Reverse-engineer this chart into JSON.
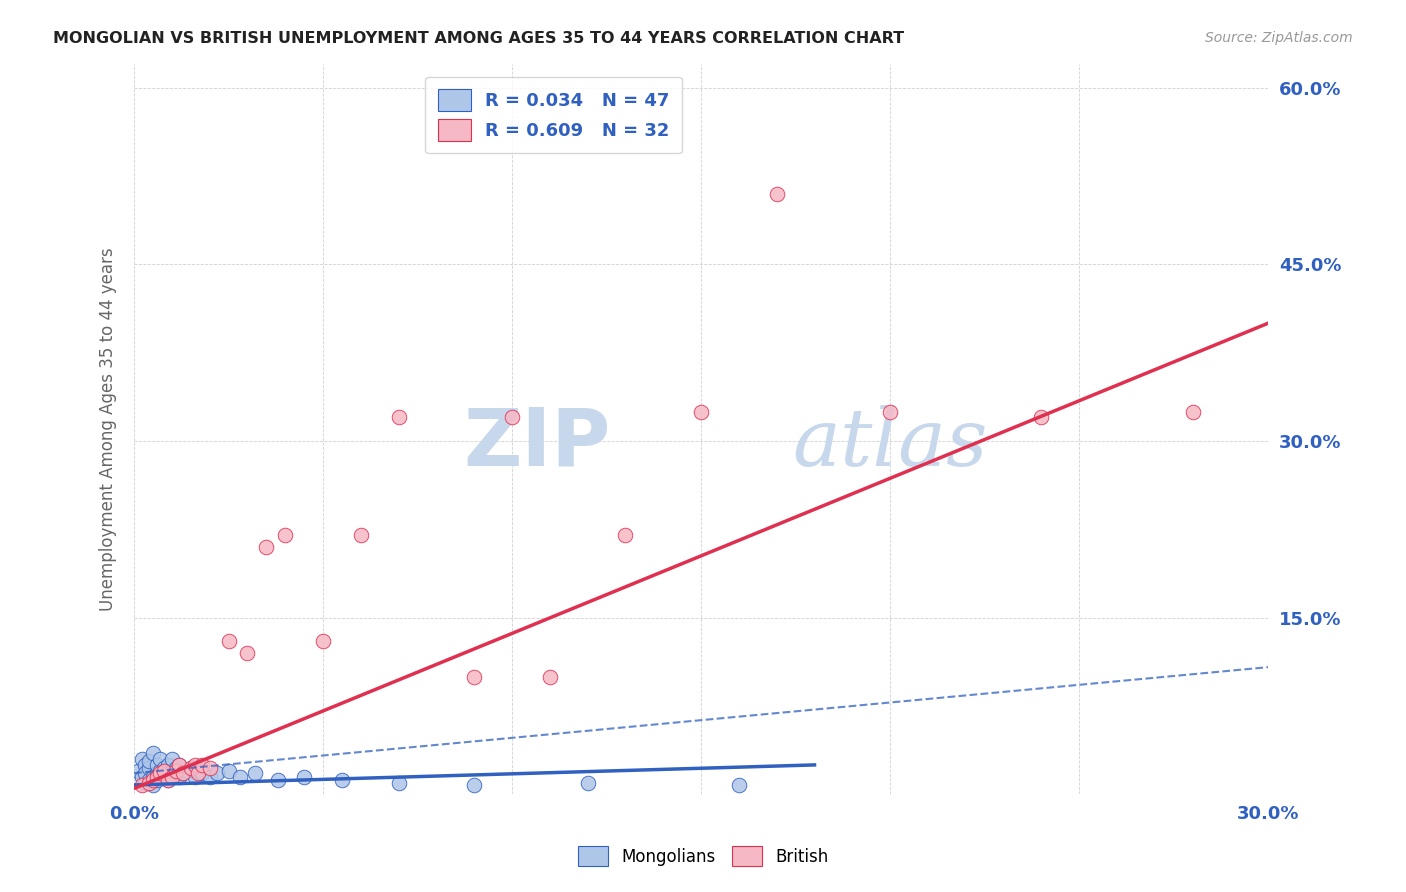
{
  "title": "MONGOLIAN VS BRITISH UNEMPLOYMENT AMONG AGES 35 TO 44 YEARS CORRELATION CHART",
  "source": "Source: ZipAtlas.com",
  "ylabel": "Unemployment Among Ages 35 to 44 years",
  "xmin": 0.0,
  "xmax": 0.3,
  "ymin": 0.0,
  "ymax": 0.62,
  "mongolian_R": 0.034,
  "mongolian_N": 47,
  "british_R": 0.609,
  "british_N": 32,
  "mongolian_color": "#aec6e8",
  "british_color": "#f5b8c4",
  "mongolian_line_color": "#3060c0",
  "british_line_color": "#e03050",
  "background_color": "#ffffff",
  "watermark_color": "#d0dce8",
  "legend_R_color": "#3060c0",
  "mongolian_x": [
    0.001,
    0.002,
    0.002,
    0.003,
    0.003,
    0.003,
    0.004,
    0.004,
    0.004,
    0.005,
    0.005,
    0.005,
    0.006,
    0.006,
    0.006,
    0.007,
    0.007,
    0.008,
    0.008,
    0.008,
    0.009,
    0.009,
    0.01,
    0.01,
    0.01,
    0.011,
    0.011,
    0.012,
    0.012,
    0.013,
    0.014,
    0.015,
    0.016,
    0.017,
    0.018,
    0.02,
    0.022,
    0.025,
    0.028,
    0.032,
    0.038,
    0.045,
    0.055,
    0.07,
    0.09,
    0.12,
    0.16
  ],
  "mongolian_y": [
    0.02,
    0.03,
    0.015,
    0.025,
    0.01,
    0.018,
    0.022,
    0.012,
    0.028,
    0.035,
    0.015,
    0.008,
    0.018,
    0.025,
    0.012,
    0.02,
    0.03,
    0.022,
    0.015,
    0.018,
    0.025,
    0.012,
    0.02,
    0.03,
    0.015,
    0.018,
    0.022,
    0.015,
    0.025,
    0.018,
    0.02,
    0.022,
    0.015,
    0.02,
    0.018,
    0.015,
    0.018,
    0.02,
    0.015,
    0.018,
    0.012,
    0.015,
    0.012,
    0.01,
    0.008,
    0.01,
    0.008
  ],
  "british_x": [
    0.002,
    0.004,
    0.005,
    0.006,
    0.007,
    0.008,
    0.009,
    0.01,
    0.011,
    0.012,
    0.013,
    0.015,
    0.016,
    0.017,
    0.018,
    0.02,
    0.025,
    0.03,
    0.035,
    0.04,
    0.05,
    0.06,
    0.07,
    0.09,
    0.1,
    0.11,
    0.13,
    0.15,
    0.17,
    0.2,
    0.24,
    0.28
  ],
  "british_y": [
    0.008,
    0.01,
    0.012,
    0.015,
    0.018,
    0.02,
    0.012,
    0.015,
    0.02,
    0.025,
    0.018,
    0.022,
    0.025,
    0.018,
    0.025,
    0.022,
    0.13,
    0.12,
    0.21,
    0.22,
    0.13,
    0.22,
    0.32,
    0.1,
    0.32,
    0.1,
    0.22,
    0.325,
    0.51,
    0.325,
    0.32,
    0.325
  ]
}
